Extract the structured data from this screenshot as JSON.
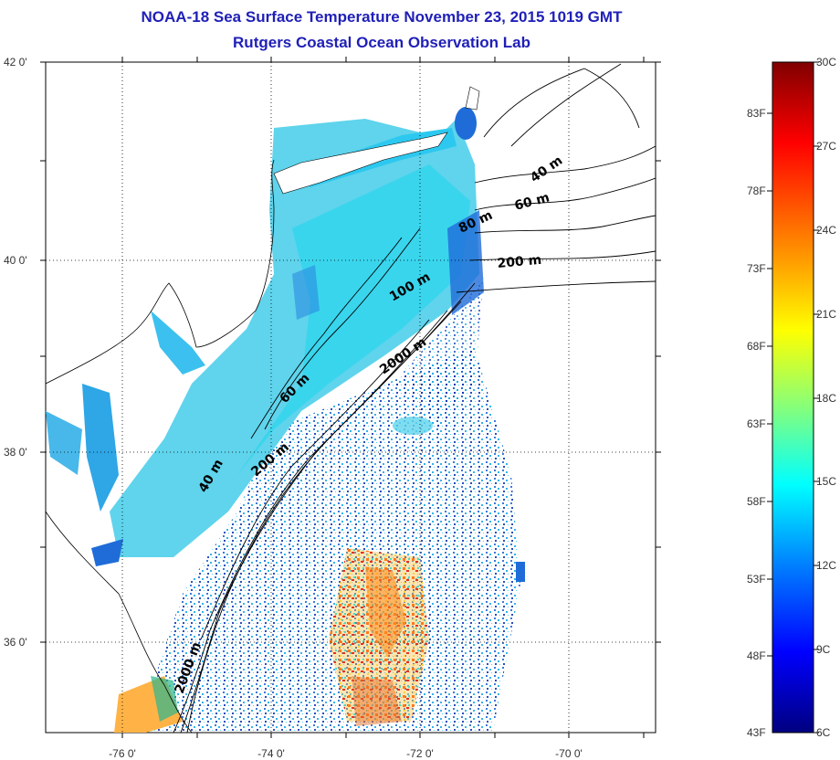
{
  "title": {
    "line1": "NOAA-18 Sea Surface Temperature November 23, 2015 1019 GMT",
    "line2": "Rutgers Coastal Ocean Observation Lab"
  },
  "lat_labels": [
    "42 0'",
    "40 0'",
    "38 0'",
    "36 0'"
  ],
  "lon_labels": [
    "-76 0'",
    "-74 0'",
    "-72 0'",
    "-70 0'"
  ],
  "contour_labels": [
    "40 m",
    "60 m",
    "80 m",
    "200 m",
    "100 m",
    "2000 m",
    "60 m",
    "200 m",
    "40 m",
    "2000 m"
  ],
  "colorbar": {
    "fahrenheit_labels": [
      "83F",
      "78F",
      "73F",
      "68F",
      "63F",
      "58F",
      "53F",
      "48F",
      "43F"
    ],
    "celsius_labels": [
      "30C",
      "27C",
      "24C",
      "21C",
      "18C",
      "15C",
      "12C",
      "9C",
      "6C"
    ],
    "colors": [
      "#800000",
      "#ff0000",
      "#ffa000",
      "#ffff00",
      "#80ff80",
      "#00ffff",
      "#0080ff",
      "#0000ff",
      "#000080"
    ]
  },
  "colors": {
    "title": "#1f1fb8",
    "ocean_cool": "#5fd4ec",
    "ocean_cyan": "#19e0f0",
    "ocean_blue": "#1f6cd8",
    "warm_orange": "#ff8a1a",
    "warm_red": "#e83020"
  }
}
